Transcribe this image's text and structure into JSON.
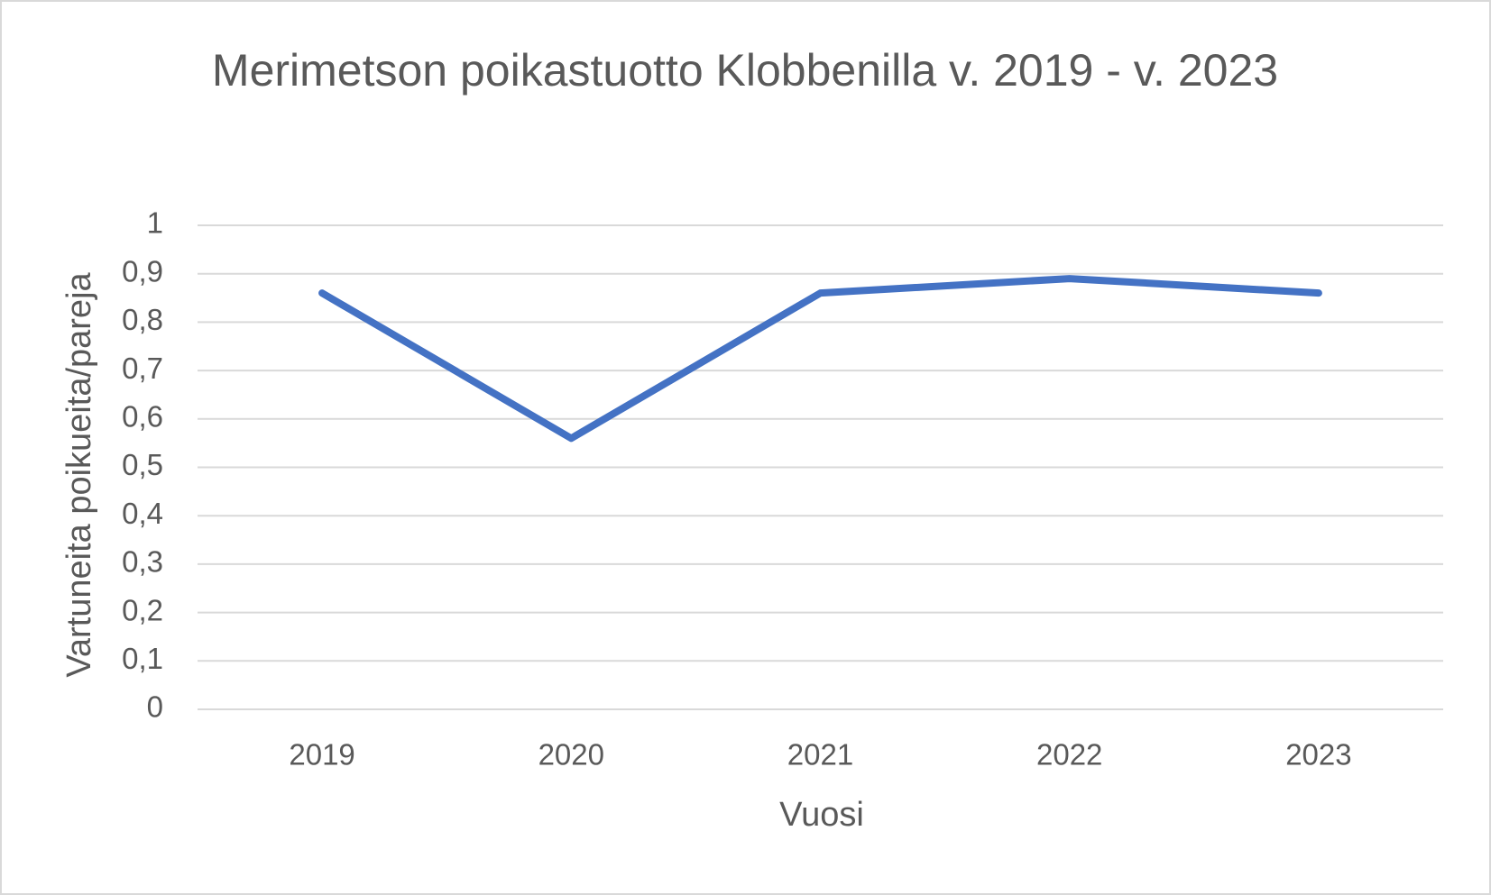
{
  "chart_data": {
    "type": "line",
    "title": "Merimetson poikastuotto Klobbenilla v. 2019 - v. 2023",
    "x_label": "Vuosi",
    "y_label": "Vartuneita poikueita/pareja",
    "categories": [
      "2019",
      "2020",
      "2021",
      "2022",
      "2023"
    ],
    "series": [
      {
        "name": "Vartuneita poikueita/pareja",
        "color": "#4472c4",
        "values": [
          0.86,
          0.56,
          0.86,
          0.89,
          0.86
        ]
      }
    ],
    "ylim": [
      0,
      1
    ],
    "yticks": [
      0,
      {
        "value": 0.1,
        "label": "0,1"
      },
      {
        "value": 0.2,
        "label": "0,2"
      },
      {
        "value": 0.3,
        "label": "0,3"
      },
      {
        "value": 0.4,
        "label": "0,4"
      },
      {
        "value": 0.5,
        "label": "0,5"
      },
      {
        "value": 0.6,
        "label": "0,6"
      },
      {
        "value": 0.7,
        "label": "0,7"
      },
      {
        "value": 0.8,
        "label": "0,8"
      },
      {
        "value": 0.9,
        "label": "0,9"
      },
      1
    ],
    "grid": true
  }
}
